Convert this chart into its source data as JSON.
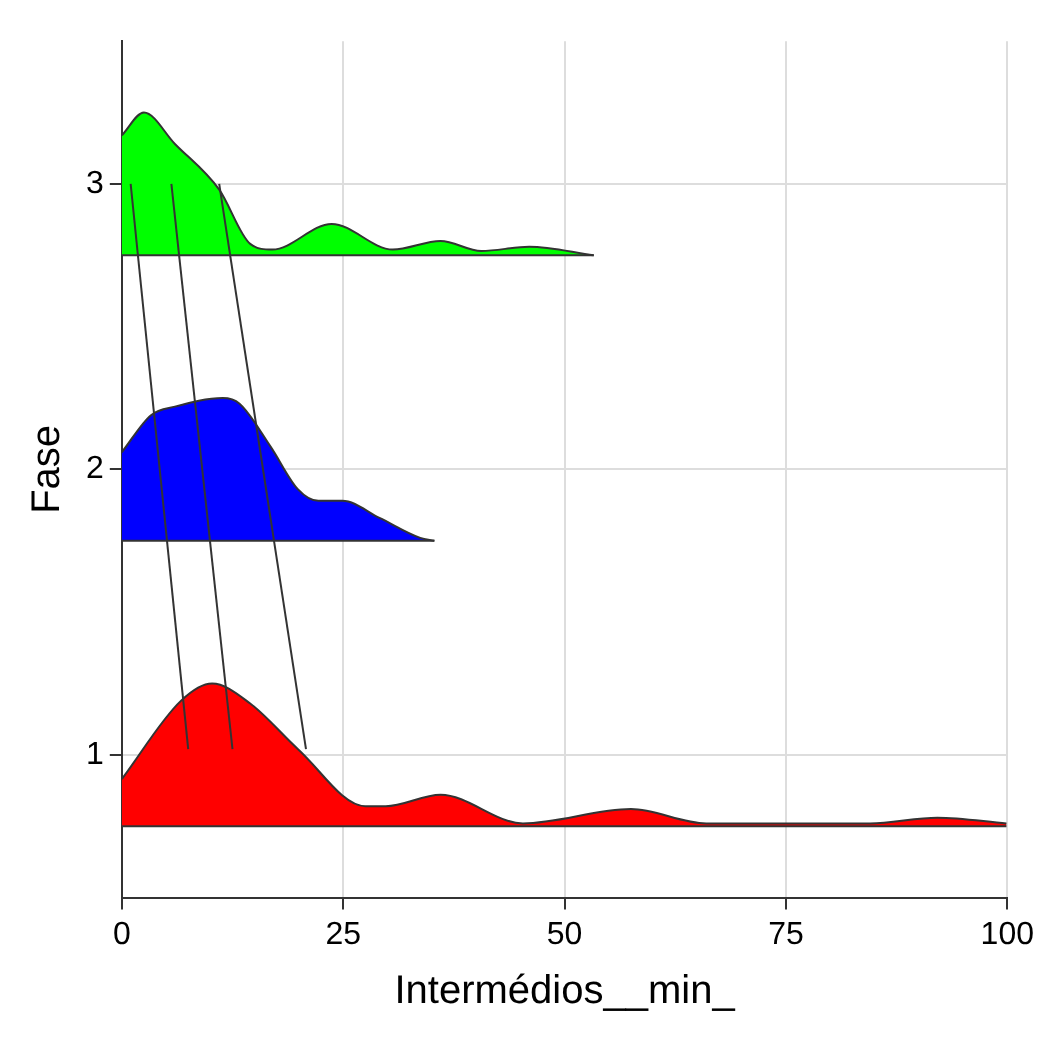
{
  "chart_data": {
    "type": "area",
    "xlabel": "Intermédios__min_",
    "ylabel": "Fase",
    "xlim": [
      0,
      100
    ],
    "xticks": [
      0,
      25,
      50,
      75,
      100
    ],
    "ylim": [
      0.5,
      3.5
    ],
    "yticks": [
      1,
      2,
      3
    ],
    "grid": true,
    "legend": false,
    "series": [
      {
        "type": "line",
        "color": "#333333",
        "x": [
          0,
          99.9
        ],
        "values": [
          0.75,
          0.75
        ]
      },
      {
        "color": "#ff0000",
        "x": [
          0,
          6.7,
          10.2,
          14.5,
          19.9,
          27.5,
          29.8,
          36,
          45.3,
          57.5,
          66,
          84.5,
          92.1,
          99.9
        ],
        "values": [
          0.915,
          1.19,
          1.25,
          1.18,
          1.02,
          0.82,
          0.82,
          0.86,
          0.76,
          0.81,
          0.76,
          0.76,
          0.78,
          0.76
        ]
      },
      {
        "type": "line",
        "color": "#333333",
        "x": [
          0,
          35.3
        ],
        "values": [
          1.75,
          1.75
        ]
      },
      {
        "color": "#0000ff",
        "x": [
          0,
          3.3,
          6,
          11.4,
          13.3,
          16.8,
          19.9,
          22.2,
          24.9,
          29.1,
          33.7,
          35.3
        ],
        "values": [
          2.06,
          2.19,
          2.22,
          2.25,
          2.23,
          2.08,
          1.93,
          1.89,
          1.89,
          1.83,
          1.76,
          1.75
        ]
      },
      {
        "type": "line",
        "color": "#333333",
        "x": [
          0,
          53.3
        ],
        "values": [
          2.75,
          2.75
        ]
      },
      {
        "color": "#00ff00",
        "x": [
          0,
          2.5,
          6,
          11,
          14.5,
          17,
          23.7,
          30.6,
          36,
          40.6,
          46,
          53.3
        ],
        "values": [
          3.17,
          3.25,
          3.14,
          2.98,
          2.79,
          2.77,
          2.86,
          2.77,
          2.8,
          2.765,
          2.78,
          2.75
        ]
      },
      {
        "type": "line",
        "color": "#333333",
        "x": [
          1,
          7.5
        ],
        "values": [
          3.0,
          1.02
        ]
      },
      {
        "type": "line",
        "color": "#333333",
        "x": [
          5.6,
          12.5
        ],
        "values": [
          3.0,
          1.02
        ]
      },
      {
        "type": "line",
        "color": "#333333",
        "x": [
          11,
          20.8
        ],
        "values": [
          3.0,
          1.02
        ]
      }
    ]
  }
}
